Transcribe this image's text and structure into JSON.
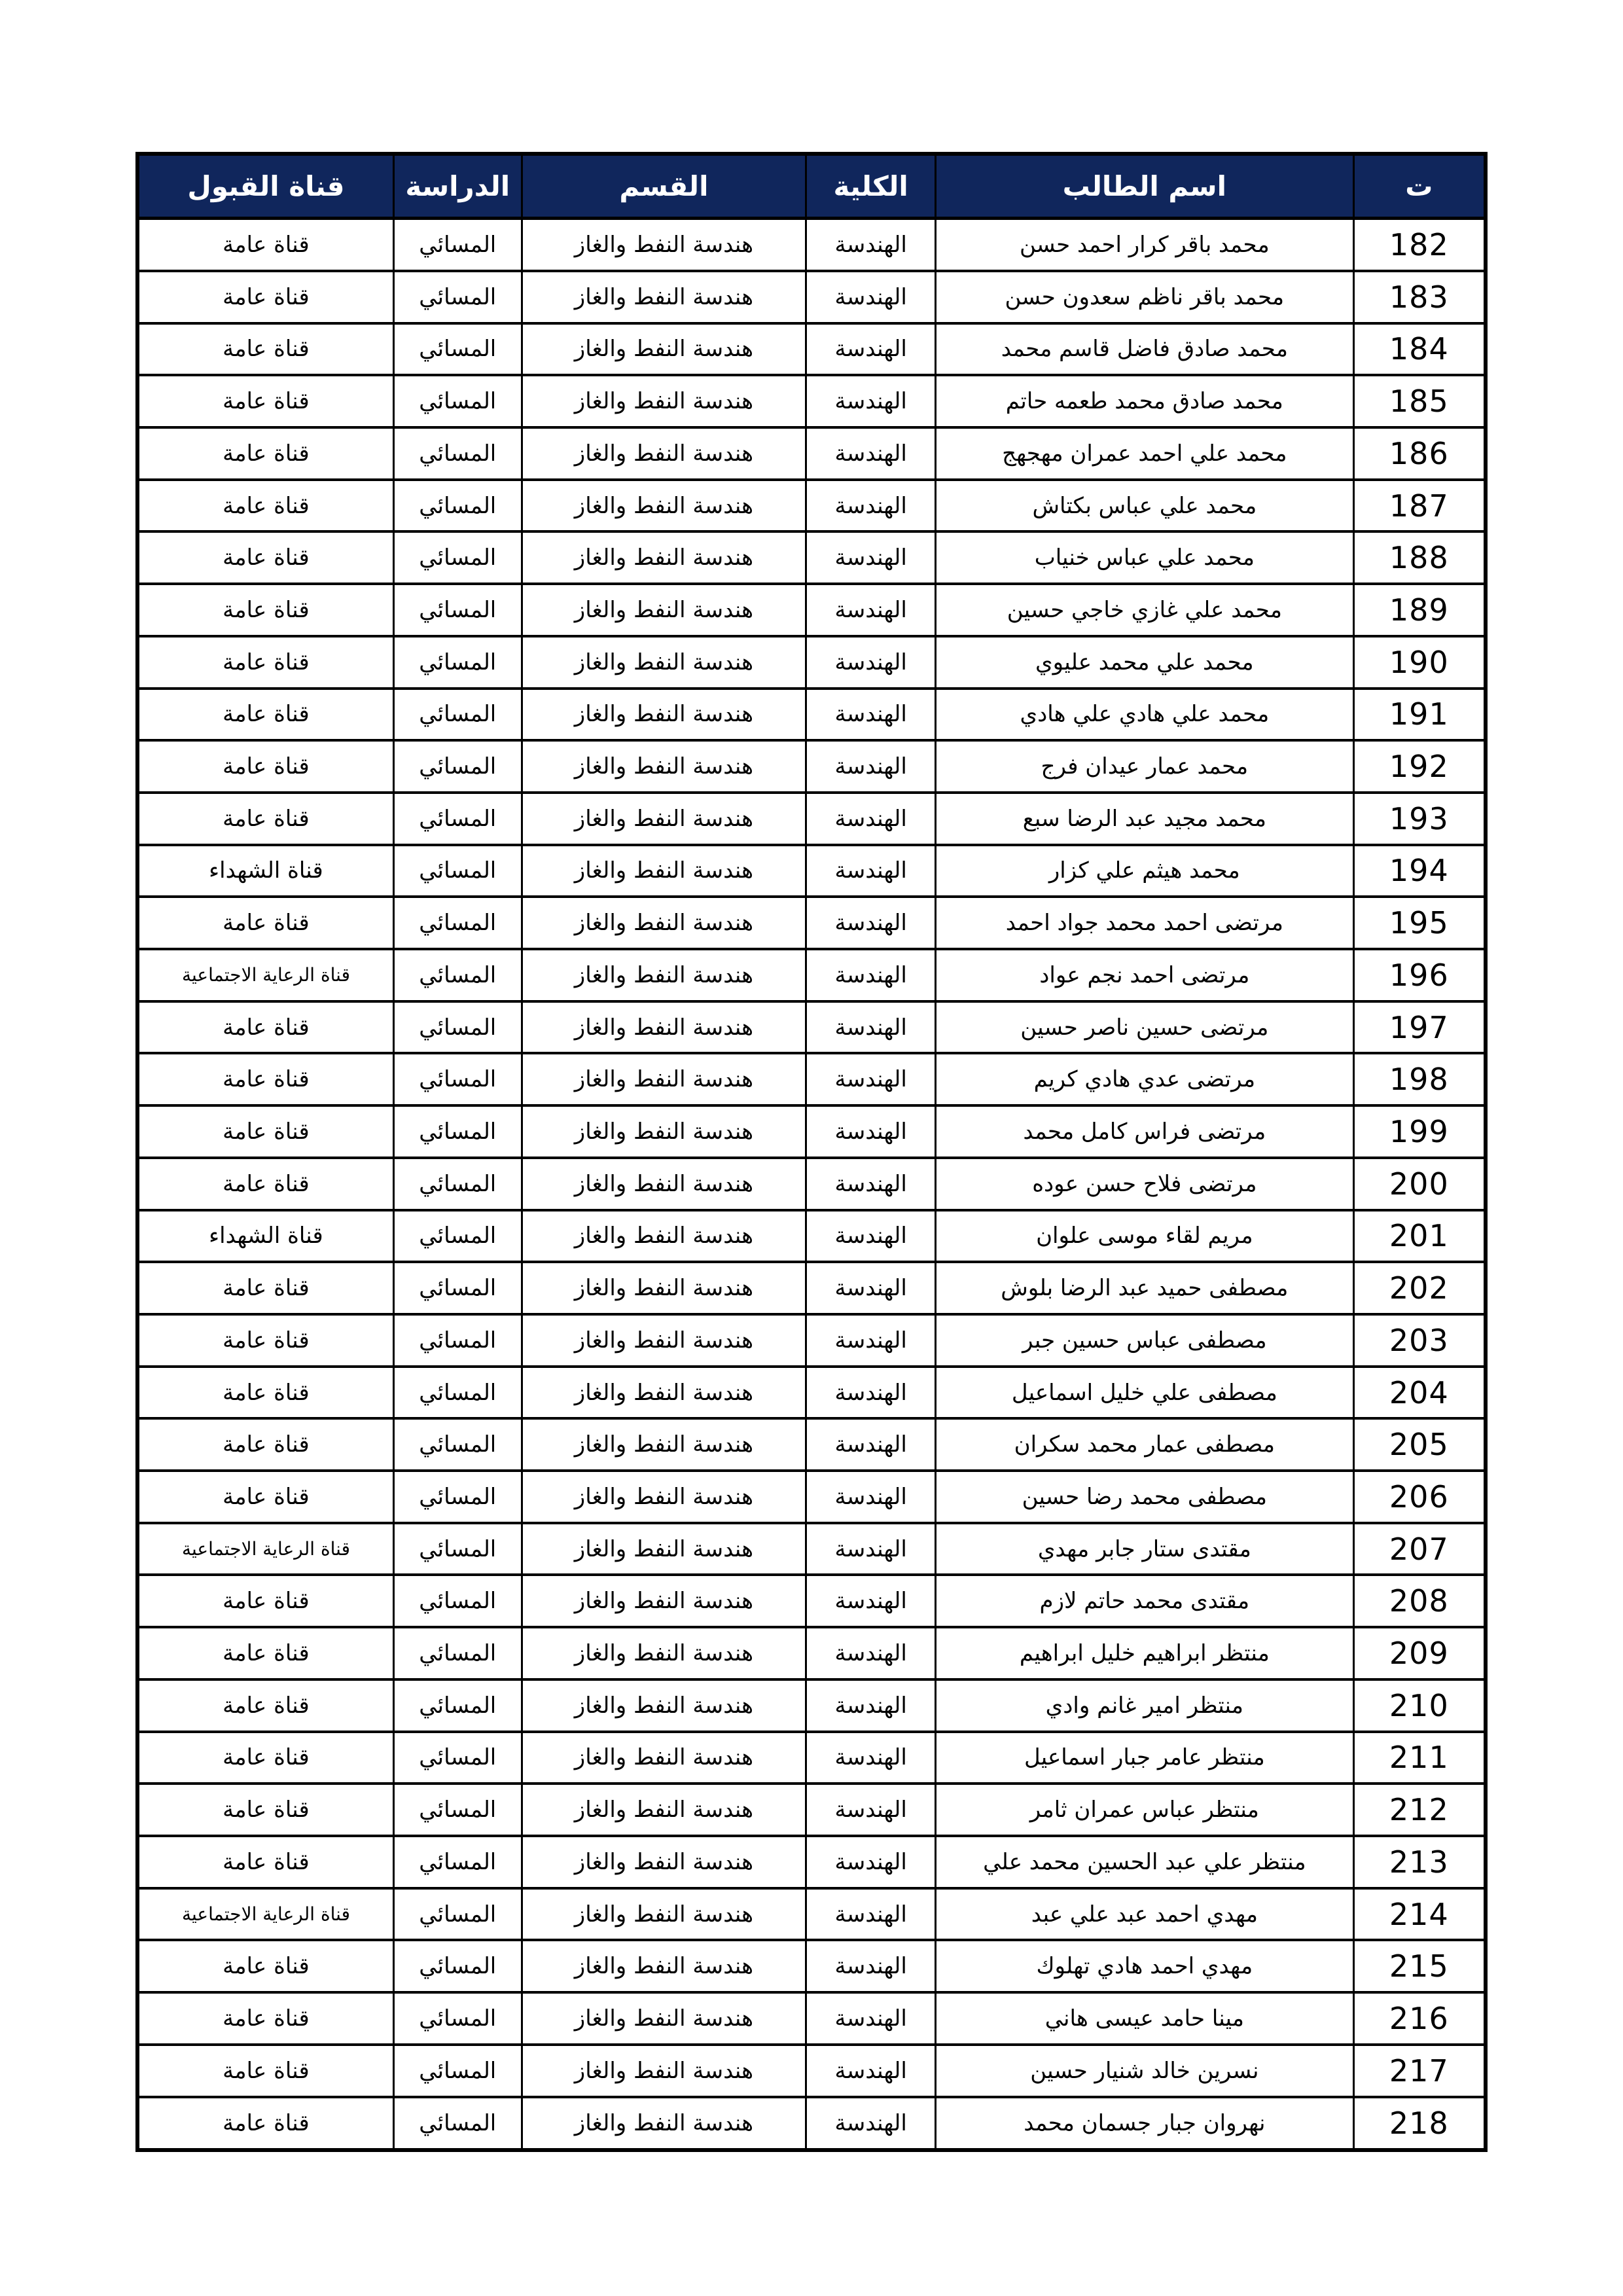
{
  "page": {
    "background": "#ffffff"
  },
  "table": {
    "header": {
      "bg_color": "#10265c",
      "text_color": "#ffffff",
      "columns": [
        {
          "key": "no",
          "label": "ت"
        },
        {
          "key": "name",
          "label": "اسم الطالب"
        },
        {
          "key": "college",
          "label": "الكلية"
        },
        {
          "key": "dept",
          "label": "القسم"
        },
        {
          "key": "study",
          "label": "الدراسة"
        },
        {
          "key": "channel",
          "label": "قناة القبول"
        }
      ]
    },
    "rows": [
      {
        "no": "182",
        "name": "محمد باقر كرار احمد حسن",
        "college": "الهندسة",
        "dept": "هندسة النفط والغاز",
        "study": "المسائي",
        "channel": "قناة عامة"
      },
      {
        "no": "183",
        "name": "محمد باقر ناظم سعدون حسن",
        "college": "الهندسة",
        "dept": "هندسة النفط والغاز",
        "study": "المسائي",
        "channel": "قناة عامة"
      },
      {
        "no": "184",
        "name": "محمد صادق فاضل قاسم محمد",
        "college": "الهندسة",
        "dept": "هندسة النفط والغاز",
        "study": "المسائي",
        "channel": "قناة عامة"
      },
      {
        "no": "185",
        "name": "محمد صادق محمد طعمه حاتم",
        "college": "الهندسة",
        "dept": "هندسة النفط والغاز",
        "study": "المسائي",
        "channel": "قناة عامة"
      },
      {
        "no": "186",
        "name": "محمد علي احمد عمران مهجهج",
        "college": "الهندسة",
        "dept": "هندسة النفط والغاز",
        "study": "المسائي",
        "channel": "قناة عامة"
      },
      {
        "no": "187",
        "name": "محمد علي عباس بكتاش",
        "college": "الهندسة",
        "dept": "هندسة النفط والغاز",
        "study": "المسائي",
        "channel": "قناة عامة"
      },
      {
        "no": "188",
        "name": "محمد علي عباس خنياب",
        "college": "الهندسة",
        "dept": "هندسة النفط والغاز",
        "study": "المسائي",
        "channel": "قناة عامة"
      },
      {
        "no": "189",
        "name": "محمد علي غازي خاجي حسين",
        "college": "الهندسة",
        "dept": "هندسة النفط والغاز",
        "study": "المسائي",
        "channel": "قناة عامة"
      },
      {
        "no": "190",
        "name": "محمد علي محمد عليوي",
        "college": "الهندسة",
        "dept": "هندسة النفط والغاز",
        "study": "المسائي",
        "channel": "قناة عامة"
      },
      {
        "no": "191",
        "name": "محمد علي هادي علي هادي",
        "college": "الهندسة",
        "dept": "هندسة النفط والغاز",
        "study": "المسائي",
        "channel": "قناة عامة"
      },
      {
        "no": "192",
        "name": "محمد عمار عيدان فرج",
        "college": "الهندسة",
        "dept": "هندسة النفط والغاز",
        "study": "المسائي",
        "channel": "قناة عامة"
      },
      {
        "no": "193",
        "name": "محمد مجيد عبد الرضا سبع",
        "college": "الهندسة",
        "dept": "هندسة النفط والغاز",
        "study": "المسائي",
        "channel": "قناة عامة"
      },
      {
        "no": "194",
        "name": "محمد هيثم علي كزار",
        "college": "الهندسة",
        "dept": "هندسة النفط والغاز",
        "study": "المسائي",
        "channel": "قناة الشهداء"
      },
      {
        "no": "195",
        "name": "مرتضى احمد محمد جواد احمد",
        "college": "الهندسة",
        "dept": "هندسة النفط والغاز",
        "study": "المسائي",
        "channel": "قناة عامة"
      },
      {
        "no": "196",
        "name": "مرتضى احمد نجم عواد",
        "college": "الهندسة",
        "dept": "هندسة النفط والغاز",
        "study": "المسائي",
        "channel": "قناة الرعاية الاجتماعية"
      },
      {
        "no": "197",
        "name": "مرتضى حسين ناصر حسين",
        "college": "الهندسة",
        "dept": "هندسة النفط والغاز",
        "study": "المسائي",
        "channel": "قناة عامة"
      },
      {
        "no": "198",
        "name": "مرتضى عدي هادي كريم",
        "college": "الهندسة",
        "dept": "هندسة النفط والغاز",
        "study": "المسائي",
        "channel": "قناة عامة"
      },
      {
        "no": "199",
        "name": "مرتضى فراس كامل محمد",
        "college": "الهندسة",
        "dept": "هندسة النفط والغاز",
        "study": "المسائي",
        "channel": "قناة عامة"
      },
      {
        "no": "200",
        "name": "مرتضى فلاح حسن عوده",
        "college": "الهندسة",
        "dept": "هندسة النفط والغاز",
        "study": "المسائي",
        "channel": "قناة عامة"
      },
      {
        "no": "201",
        "name": "مريم لقاء موسى علوان",
        "college": "الهندسة",
        "dept": "هندسة النفط والغاز",
        "study": "المسائي",
        "channel": "قناة الشهداء"
      },
      {
        "no": "202",
        "name": "مصطفى حميد عبد الرضا بلوش",
        "college": "الهندسة",
        "dept": "هندسة النفط والغاز",
        "study": "المسائي",
        "channel": "قناة عامة"
      },
      {
        "no": "203",
        "name": "مصطفى عباس حسين جبر",
        "college": "الهندسة",
        "dept": "هندسة النفط والغاز",
        "study": "المسائي",
        "channel": "قناة عامة"
      },
      {
        "no": "204",
        "name": "مصطفى علي خليل اسماعيل",
        "college": "الهندسة",
        "dept": "هندسة النفط والغاز",
        "study": "المسائي",
        "channel": "قناة عامة"
      },
      {
        "no": "205",
        "name": "مصطفى عمار محمد سكران",
        "college": "الهندسة",
        "dept": "هندسة النفط والغاز",
        "study": "المسائي",
        "channel": "قناة عامة"
      },
      {
        "no": "206",
        "name": "مصطفى محمد رضا حسين",
        "college": "الهندسة",
        "dept": "هندسة النفط والغاز",
        "study": "المسائي",
        "channel": "قناة عامة"
      },
      {
        "no": "207",
        "name": "مقتدى ستار جابر مهدي",
        "college": "الهندسة",
        "dept": "هندسة النفط والغاز",
        "study": "المسائي",
        "channel": "قناة الرعاية الاجتماعية"
      },
      {
        "no": "208",
        "name": "مقتدى محمد حاتم لازم",
        "college": "الهندسة",
        "dept": "هندسة النفط والغاز",
        "study": "المسائي",
        "channel": "قناة عامة"
      },
      {
        "no": "209",
        "name": "منتظر ابراهيم خليل ابراهيم",
        "college": "الهندسة",
        "dept": "هندسة النفط والغاز",
        "study": "المسائي",
        "channel": "قناة عامة"
      },
      {
        "no": "210",
        "name": "منتظر امير غانم وادي",
        "college": "الهندسة",
        "dept": "هندسة النفط والغاز",
        "study": "المسائي",
        "channel": "قناة عامة"
      },
      {
        "no": "211",
        "name": "منتظر عامر جبار اسماعيل",
        "college": "الهندسة",
        "dept": "هندسة النفط والغاز",
        "study": "المسائي",
        "channel": "قناة عامة"
      },
      {
        "no": "212",
        "name": "منتظر عباس عمران ثامر",
        "college": "الهندسة",
        "dept": "هندسة النفط والغاز",
        "study": "المسائي",
        "channel": "قناة عامة"
      },
      {
        "no": "213",
        "name": "منتظر علي عبد الحسين محمد علي",
        "college": "الهندسة",
        "dept": "هندسة النفط والغاز",
        "study": "المسائي",
        "channel": "قناة عامة"
      },
      {
        "no": "214",
        "name": "مهدي احمد عبد علي عبد",
        "college": "الهندسة",
        "dept": "هندسة النفط والغاز",
        "study": "المسائي",
        "channel": "قناة الرعاية الاجتماعية"
      },
      {
        "no": "215",
        "name": "مهدي احمد هادي تهلوك",
        "college": "الهندسة",
        "dept": "هندسة النفط والغاز",
        "study": "المسائي",
        "channel": "قناة عامة"
      },
      {
        "no": "216",
        "name": "مينا حامد عيسى هاني",
        "college": "الهندسة",
        "dept": "هندسة النفط والغاز",
        "study": "المسائي",
        "channel": "قناة عامة"
      },
      {
        "no": "217",
        "name": "نسرين خالد شنيار حسين",
        "college": "الهندسة",
        "dept": "هندسة النفط والغاز",
        "study": "المسائي",
        "channel": "قناة عامة"
      },
      {
        "no": "218",
        "name": "نهروان جبار جسمان محمد",
        "college": "الهندسة",
        "dept": "هندسة النفط والغاز",
        "study": "المسائي",
        "channel": "قناة عامة"
      }
    ]
  }
}
